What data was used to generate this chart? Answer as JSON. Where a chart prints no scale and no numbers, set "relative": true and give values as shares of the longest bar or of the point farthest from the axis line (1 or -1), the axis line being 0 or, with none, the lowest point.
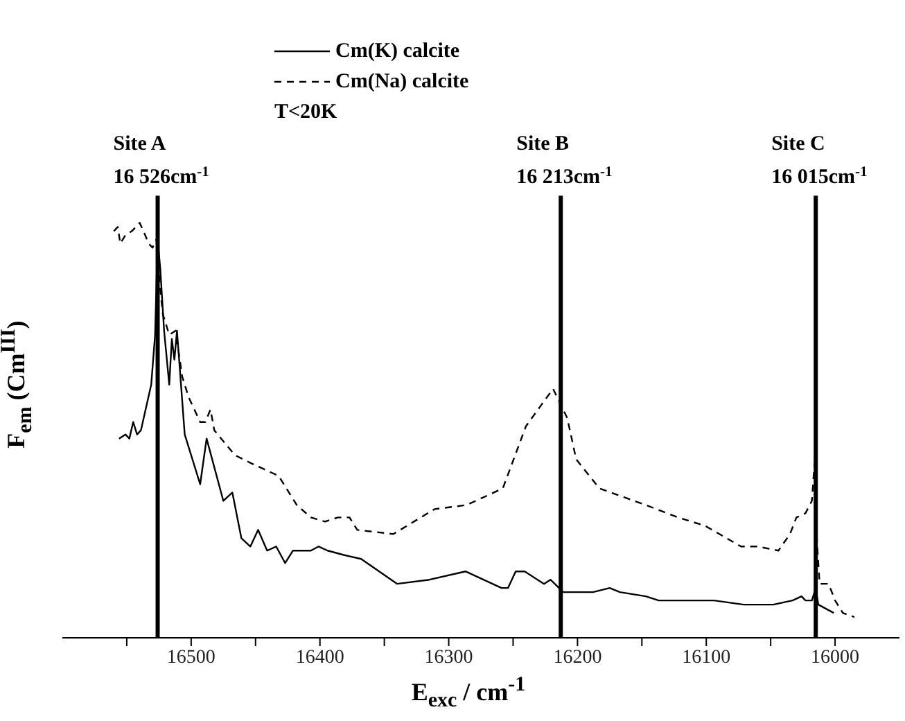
{
  "chart_data": {
    "type": "line",
    "relative": true,
    "xlabel": "E$_{exc}$ / cm$^{-1}$",
    "ylabel": "F$_{em}$ (Cm$^{III}$)",
    "annotations": [
      "T<20K"
    ],
    "xlim": [
      16600,
      15950
    ],
    "xticks": [
      {
        "value": 16550,
        "label": null
      },
      16500,
      {
        "value": 16450,
        "label": null
      },
      16400,
      {
        "value": 16350,
        "label": null
      },
      16300,
      {
        "value": 16250,
        "label": null
      },
      16200,
      {
        "value": 16150,
        "label": null
      },
      16100,
      {
        "value": 16050,
        "label": null
      },
      16000
    ],
    "legend": "top",
    "ref_lines": [
      {
        "axis": "x",
        "value": 16526,
        "label": "Site A\n16 526cm$^{-1}$",
        "color": "#000000"
      },
      {
        "axis": "x",
        "value": 16213,
        "label": "Site B\n16 213cm$^{-1}$",
        "color": "#000000"
      },
      {
        "axis": "x",
        "value": 16015,
        "label": "Site C\n16 015cm$^{-1}$",
        "color": "#000000"
      }
    ],
    "series": [
      {
        "name": "Cm(K) calcite",
        "color": "#000000",
        "line_style": "solid",
        "x": [
          16556,
          16551,
          16548,
          16545,
          16542,
          16539,
          16531,
          16528,
          16526,
          16524,
          16521,
          16517,
          16515,
          16513,
          16511,
          16505,
          16493,
          16488,
          16475,
          16468,
          16461,
          16454,
          16448,
          16441,
          16434,
          16427,
          16421,
          16412,
          16407,
          16401,
          16394,
          16382,
          16368,
          16340,
          16315,
          16287,
          16259,
          16254,
          16248,
          16241,
          16226,
          16221,
          16211,
          16188,
          16175,
          16167,
          16147,
          16137,
          16112,
          16094,
          16071,
          16048,
          16033,
          16026,
          16023,
          16018,
          16015,
          16013,
          16007,
          16001
        ],
        "values": [
          0.48,
          0.49,
          0.48,
          0.52,
          0.49,
          0.5,
          0.61,
          0.73,
          0.96,
          0.89,
          0.74,
          0.61,
          0.72,
          0.67,
          0.74,
          0.49,
          0.37,
          0.48,
          0.33,
          0.35,
          0.24,
          0.22,
          0.26,
          0.21,
          0.22,
          0.18,
          0.21,
          0.21,
          0.21,
          0.22,
          0.21,
          0.2,
          0.19,
          0.13,
          0.14,
          0.16,
          0.12,
          0.12,
          0.16,
          0.16,
          0.13,
          0.14,
          0.11,
          0.11,
          0.12,
          0.11,
          0.1,
          0.09,
          0.09,
          0.09,
          0.08,
          0.08,
          0.09,
          0.1,
          0.09,
          0.09,
          0.12,
          0.08,
          0.07,
          0.06
        ]
      },
      {
        "name": "Cm(Na) calcite",
        "color": "#000000",
        "line_style": "dashed",
        "x": [
          16560,
          16557,
          16555,
          16551,
          16546,
          16540,
          16537,
          16533,
          16530,
          16527,
          16524,
          16522,
          16517,
          16512,
          16507,
          16502,
          16493,
          16489,
          16485,
          16482,
          16466,
          16453,
          16432,
          16418,
          16407,
          16396,
          16386,
          16377,
          16371,
          16343,
          16311,
          16286,
          16258,
          16240,
          16219,
          16208,
          16201,
          16183,
          16147,
          16122,
          16101,
          16073,
          16060,
          16044,
          16035,
          16030,
          16023,
          16018,
          16016,
          16014,
          16012,
          16005,
          16000,
          15994,
          15985
        ],
        "values": [
          0.98,
          0.99,
          0.95,
          0.97,
          0.98,
          1,
          0.98,
          0.95,
          0.94,
          0.96,
          0.84,
          0.78,
          0.73,
          0.74,
          0.63,
          0.58,
          0.52,
          0.52,
          0.55,
          0.5,
          0.44,
          0.42,
          0.39,
          0.32,
          0.29,
          0.28,
          0.29,
          0.29,
          0.26,
          0.25,
          0.31,
          0.32,
          0.36,
          0.51,
          0.6,
          0.53,
          0.43,
          0.36,
          0.32,
          0.29,
          0.27,
          0.22,
          0.22,
          0.21,
          0.25,
          0.29,
          0.3,
          0.33,
          0.42,
          0.23,
          0.13,
          0.13,
          0.09,
          0.06,
          0.05
        ]
      }
    ]
  }
}
